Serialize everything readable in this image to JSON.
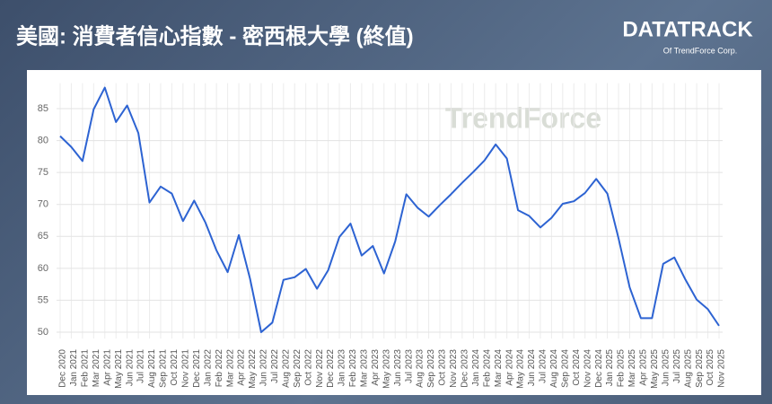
{
  "chart_data": {
    "type": "line",
    "title": "美國: 消費者信心指數 - 密西根大學 (終值)",
    "categories": [
      "Dec 2020",
      "Jan 2021",
      "Feb 2021",
      "Mar 2021",
      "Apr 2021",
      "May 2021",
      "Jun 2021",
      "Jul 2021",
      "Aug 2021",
      "Sep 2021",
      "Oct 2021",
      "Nov 2021",
      "Dec 2021",
      "Jan 2022",
      "Feb 2022",
      "Mar 2022",
      "Apr 2022",
      "May 2022",
      "Jun 2022",
      "Jul 2022",
      "Aug 2022",
      "Sep 2022",
      "Oct 2022",
      "Nov 2022",
      "Dec 2022",
      "Jan 2023",
      "Feb 2023",
      "Mar 2023",
      "Apr 2023",
      "May 2023",
      "Jun 2023",
      "Jul 2023",
      "Aug 2023",
      "Sep 2023",
      "Oct 2023",
      "Nov 2023",
      "Dec 2023",
      "Jan 2024",
      "Feb 2024",
      "Mar 2024",
      "Apr 2024",
      "May 2024",
      "Jun 2024",
      "Jul 2024",
      "Aug 2024",
      "Sep 2024",
      "Oct 2024",
      "Nov 2024",
      "Dec 2024",
      "Jan 2025",
      "Feb 2025",
      "Mar 2025",
      "Apr 2025",
      "May 2025",
      "Jun 2025",
      "Jul 2025",
      "Aug 2025",
      "Sep 2025",
      "Oct 2025",
      "Nov 2025"
    ],
    "values": [
      80.7,
      79.0,
      76.8,
      84.9,
      88.3,
      82.9,
      85.5,
      81.2,
      70.3,
      72.8,
      71.7,
      67.4,
      70.6,
      67.2,
      62.8,
      59.4,
      65.2,
      58.4,
      50.0,
      51.5,
      58.2,
      58.6,
      59.9,
      56.8,
      59.7,
      64.9,
      67.0,
      62.0,
      63.5,
      59.2,
      64.2,
      71.6,
      69.5,
      68.1,
      69.9,
      71.6,
      73.4,
      75.1,
      76.9,
      79.4,
      77.2,
      69.1,
      68.2,
      66.4,
      67.9,
      70.1,
      70.5,
      71.8,
      74.0,
      71.7,
      64.7,
      57.0,
      52.2,
      52.2,
      60.7,
      61.7,
      58.2,
      55.1,
      53.6,
      51.0
    ],
    "color": "#2d63d2",
    "ylim": [
      49,
      89
    ],
    "yticks": [
      50,
      55,
      60,
      65,
      70,
      75,
      80,
      85
    ],
    "grid": true
  },
  "header": {
    "logo": "DATATRACK",
    "logo_sub": "Of TrendForce Corp."
  },
  "watermark": "TrendForce"
}
